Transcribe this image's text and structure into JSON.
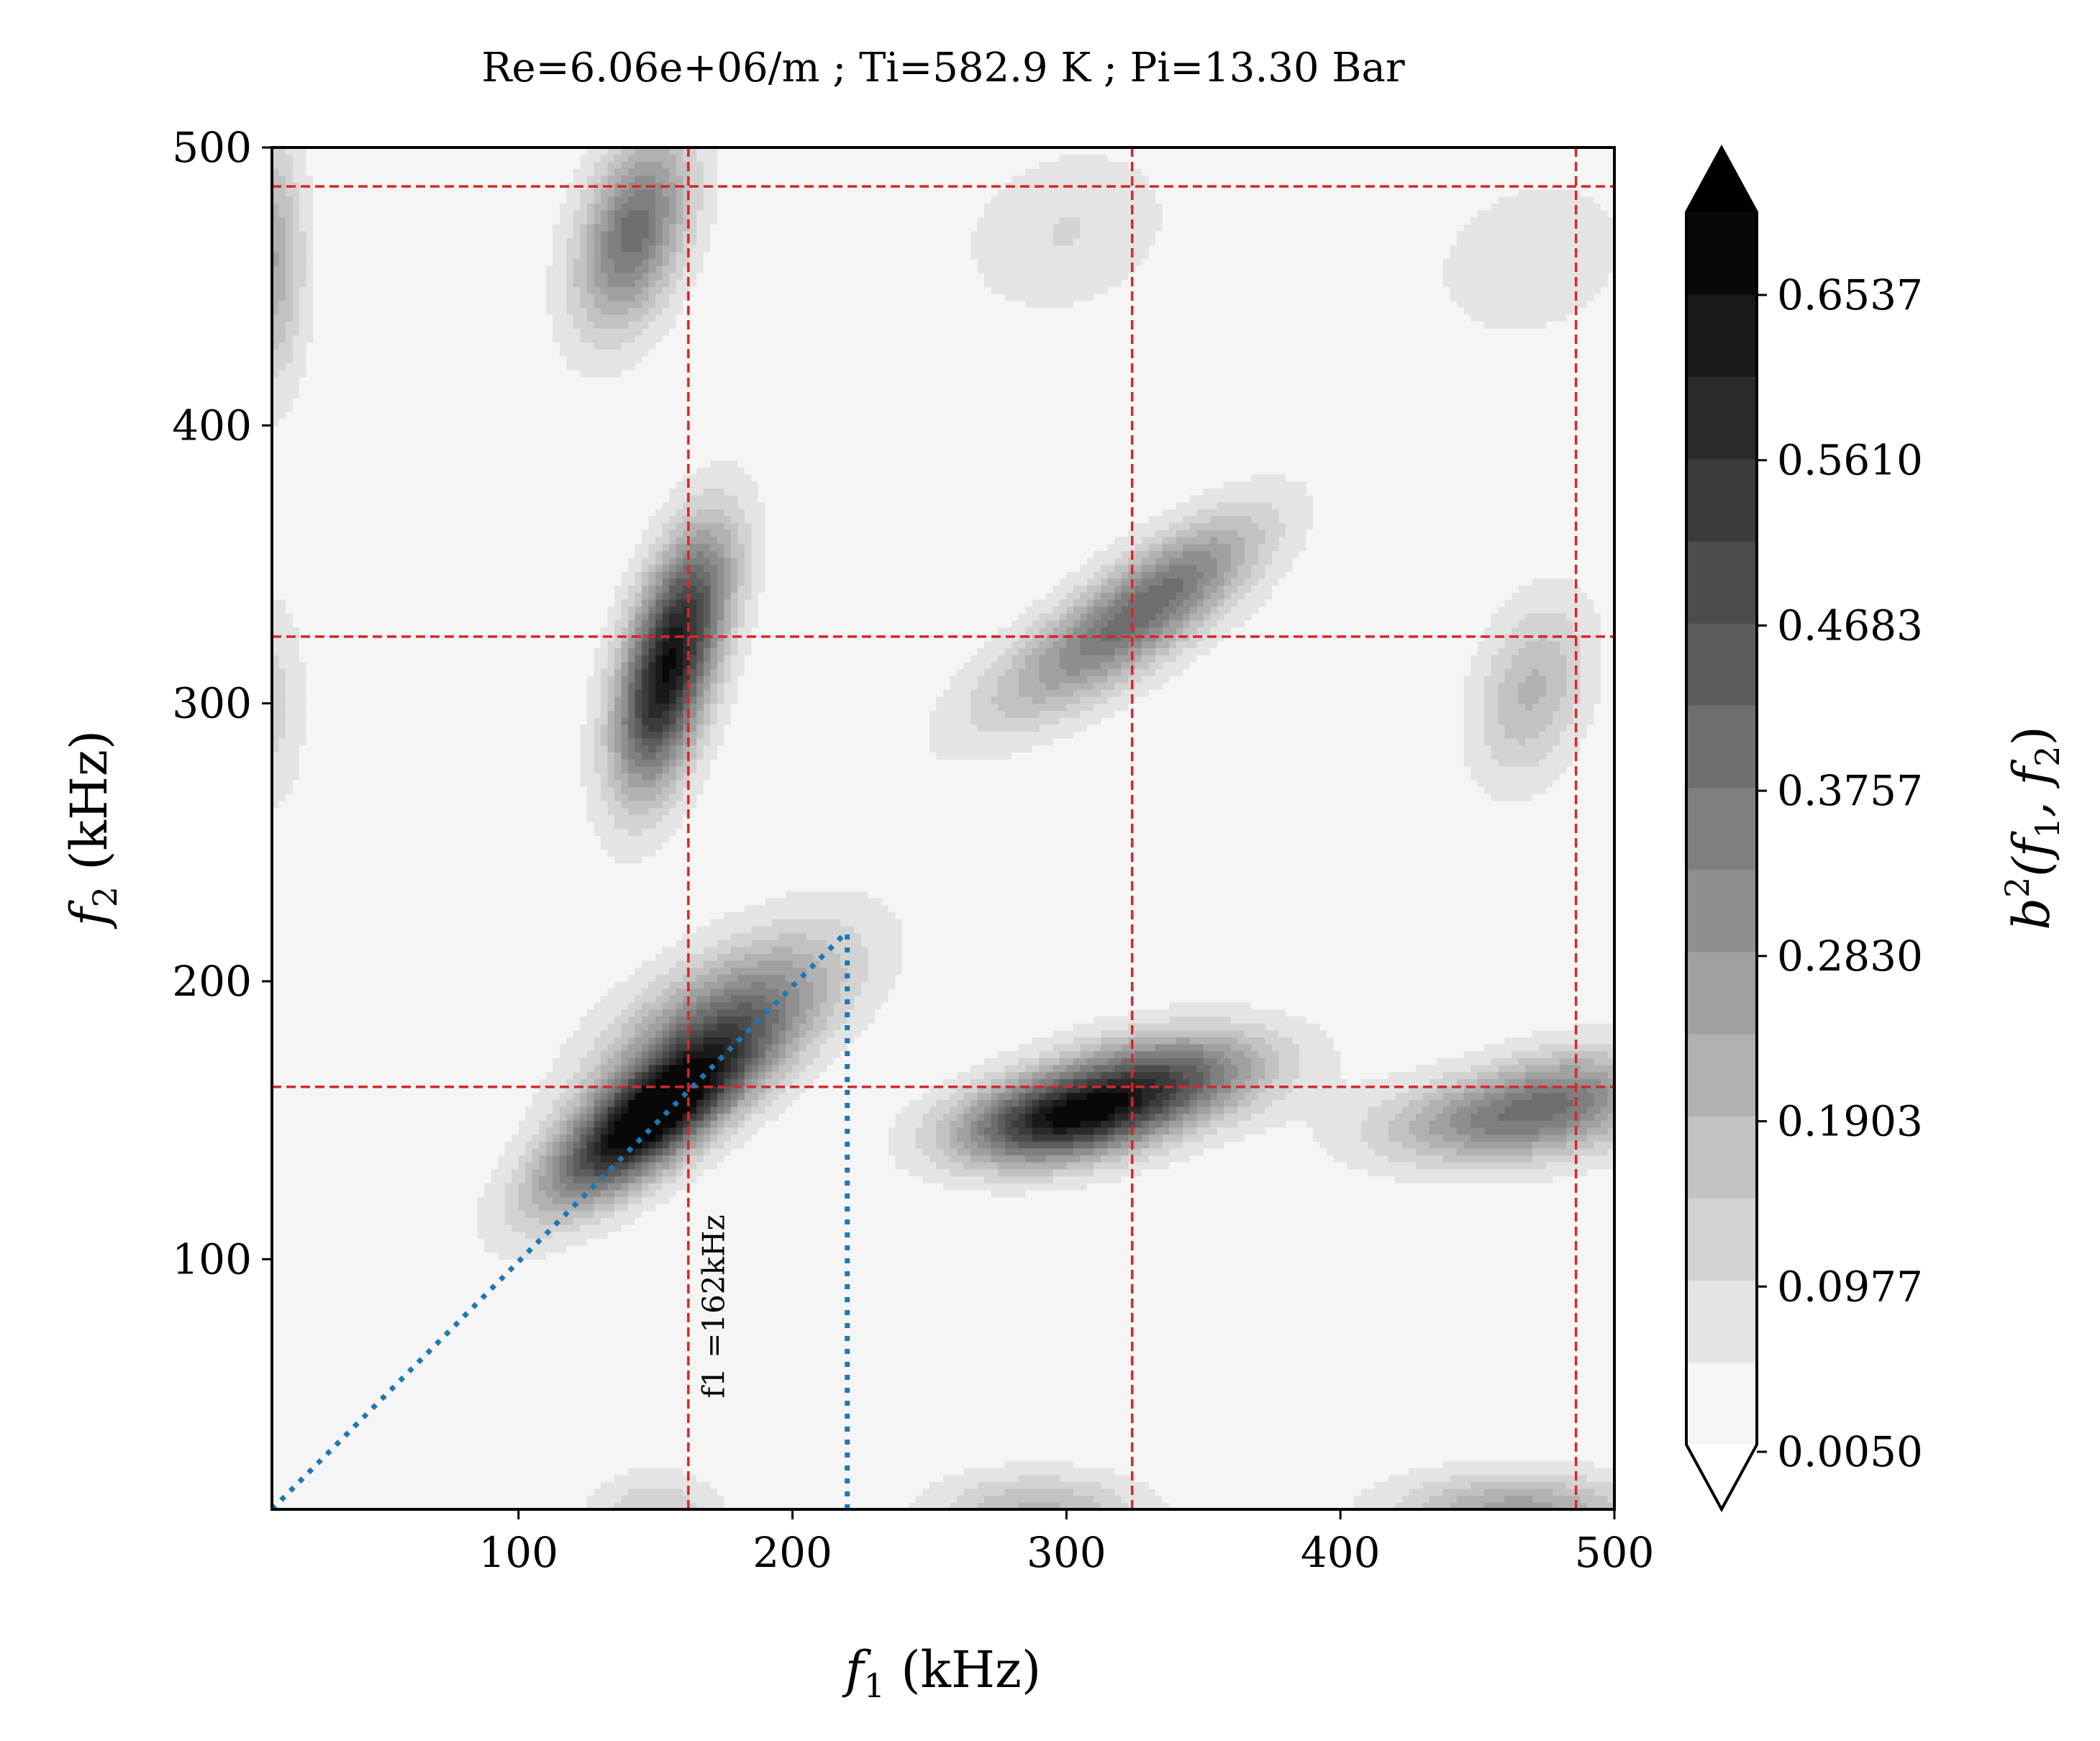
{
  "chart_data": {
    "type": "heatmap",
    "title": "Re=6.06e+06/m ; Ti=582.9 K ; Pi=13.30 Bar",
    "xlabel_var": "f",
    "xlabel_sub": "1",
    "xlabel_unit": " (kHz)",
    "ylabel_var": "f",
    "ylabel_sub": "2",
    "ylabel_unit": " (kHz)",
    "xlim": [
      10,
      500
    ],
    "ylim": [
      10,
      500
    ],
    "xticks": [
      100,
      200,
      300,
      400,
      500
    ],
    "yticks": [
      100,
      200,
      300,
      400,
      500
    ],
    "colorbar": {
      "label_var": "b",
      "label_sup": "2",
      "label_args": "(f",
      "label_sub1": "1",
      "label_mid": ", f",
      "label_sub2": "2",
      "label_end": ")",
      "ticks": [
        "0.0050",
        "0.0977",
        "0.1903",
        "0.2830",
        "0.3757",
        "0.4683",
        "0.5610",
        "0.6537"
      ],
      "min": 0.005,
      "max": 0.7,
      "levels": 15,
      "extend": "both",
      "colormap": "Greys"
    },
    "peaks": [
      {
        "f1": 147,
        "f2": 150,
        "b2": 0.68,
        "s1": 25,
        "s2": 20,
        "rho": 0.75
      },
      {
        "f1": 175,
        "f2": 185,
        "b2": 0.34,
        "s1": 30,
        "s2": 22,
        "rho": 0.6
      },
      {
        "f1": 152,
        "f2": 305,
        "b2": 0.55,
        "s1": 12,
        "s2": 26,
        "rho": 0.4
      },
      {
        "f1": 165,
        "f2": 340,
        "b2": 0.28,
        "s1": 12,
        "s2": 22,
        "rho": 0.4
      },
      {
        "f1": 142,
        "f2": 470,
        "b2": 0.38,
        "s1": 14,
        "s2": 24,
        "rho": 0.4
      },
      {
        "f1": 297,
        "f2": 150,
        "b2": 0.55,
        "s1": 26,
        "s2": 11,
        "rho": 0.3
      },
      {
        "f1": 335,
        "f2": 165,
        "b2": 0.4,
        "s1": 28,
        "s2": 12,
        "rho": 0.3
      },
      {
        "f1": 310,
        "f2": 320,
        "b2": 0.25,
        "s1": 30,
        "s2": 20,
        "rho": 0.75
      },
      {
        "f1": 340,
        "f2": 345,
        "b2": 0.24,
        "s1": 24,
        "s2": 18,
        "rho": 0.7
      },
      {
        "f1": 460,
        "f2": 150,
        "b2": 0.3,
        "s1": 32,
        "s2": 11,
        "rho": 0.2
      },
      {
        "f1": 485,
        "f2": 163,
        "b2": 0.18,
        "s1": 22,
        "s2": 11,
        "rho": 0.2
      },
      {
        "f1": 470,
        "f2": 305,
        "b2": 0.18,
        "s1": 14,
        "s2": 22,
        "rho": 0.3
      },
      {
        "f1": 290,
        "f2": 10,
        "b2": 0.18,
        "s1": 25,
        "s2": 9,
        "rho": 0.0
      },
      {
        "f1": 465,
        "f2": 10,
        "b2": 0.24,
        "s1": 30,
        "s2": 9,
        "rho": 0.0
      },
      {
        "f1": 10,
        "f2": 460,
        "b2": 0.22,
        "s1": 8,
        "s2": 30,
        "rho": 0.0
      },
      {
        "f1": 150,
        "f2": 10,
        "b2": 0.12,
        "s1": 15,
        "s2": 9,
        "rho": 0.0
      },
      {
        "f1": 300,
        "f2": 470,
        "b2": 0.08,
        "s1": 25,
        "s2": 20,
        "rho": 0.2
      },
      {
        "f1": 470,
        "f2": 460,
        "b2": 0.07,
        "s1": 25,
        "s2": 20,
        "rho": 0.2
      },
      {
        "f1": 10,
        "f2": 300,
        "b2": 0.1,
        "s1": 8,
        "s2": 25,
        "rho": 0.0
      }
    ],
    "background_level": 0.02,
    "reference_lines_f1": [
      162,
      324,
      486
    ],
    "reference_lines_f2": [
      162,
      324,
      486
    ],
    "line_color": "#d62728",
    "diagonal_line": {
      "from": [
        10,
        10
      ],
      "to": [
        220,
        218
      ],
      "color": "#1f77b4"
    },
    "vertical_line": {
      "f1": 220,
      "from_f2": 10,
      "to_f2": 218,
      "color": "#1f77b4"
    },
    "annotation": {
      "text": "f1 =162kHz",
      "f1": 175,
      "f2": 50
    }
  }
}
